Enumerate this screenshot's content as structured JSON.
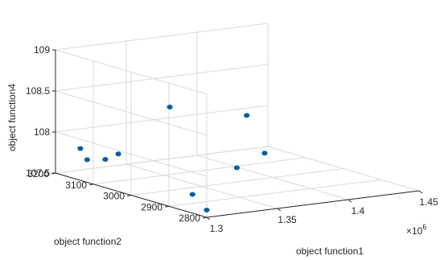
{
  "chart_data": {
    "type": "scatter",
    "view": "3d",
    "title": "",
    "xlabel": "object function1",
    "ylabel": "object function2",
    "zlabel": "object function4",
    "x_exponent_label": "×10",
    "x_exponent_power": "6",
    "xlim": [
      1300000,
      1450000
    ],
    "ylim": [
      2800,
      3200
    ],
    "zlim": [
      107.5,
      109
    ],
    "x_ticks": [
      1300000,
      1350000,
      1400000,
      1450000
    ],
    "x_tick_labels": [
      "1.3",
      "1.35",
      "1.4",
      "1.45"
    ],
    "y_ticks": [
      2800,
      2900,
      3000,
      3100,
      3200
    ],
    "y_tick_labels": [
      "2800",
      "2900",
      "3000",
      "3100",
      "3200"
    ],
    "z_ticks": [
      107.5,
      108,
      108.5,
      109
    ],
    "z_tick_labels": [
      "107.5",
      "108",
      "108.5",
      "109"
    ],
    "grid": true,
    "marker_color": "#0b5d9e",
    "points": [
      {
        "x": 1304000,
        "y": 2815,
        "z": 107.56
      },
      {
        "x": 1322000,
        "y": 2920,
        "z": 107.57
      },
      {
        "x": 1364000,
        "y": 2960,
        "z": 107.75
      },
      {
        "x": 1305000,
        "y": 3135,
        "z": 107.74
      },
      {
        "x": 1301000,
        "y": 3138,
        "z": 107.88
      },
      {
        "x": 1313000,
        "y": 3117,
        "z": 107.75
      },
      {
        "x": 1319000,
        "y": 3105,
        "z": 107.82
      },
      {
        "x": 1397000,
        "y": 3010,
        "z": 107.79
      },
      {
        "x": 1395000,
        "y": 3050,
        "z": 108.2
      },
      {
        "x": 1346000,
        "y": 3070,
        "z": 108.38
      }
    ]
  }
}
